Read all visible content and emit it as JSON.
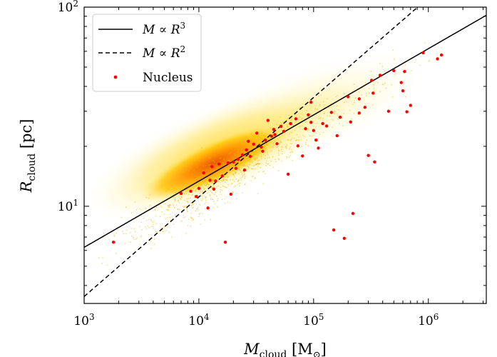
{
  "chart_data": {
    "type": "scatter",
    "title": "",
    "xlabel": {
      "main": "M",
      "sub": "cloud",
      "unit_open": " [M",
      "unit_sub": "⊙",
      "unit_close": "]"
    },
    "ylabel": {
      "main": "R",
      "sub": "cloud",
      "unit": " [pc]"
    },
    "xscale": "log",
    "yscale": "log",
    "xlim": [
      1000,
      3200000
    ],
    "ylim": [
      3.25,
      100
    ],
    "xticks": [
      {
        "value": 1000,
        "base": "10",
        "exp": "3"
      },
      {
        "value": 10000,
        "base": "10",
        "exp": "4"
      },
      {
        "value": 100000,
        "base": "10",
        "exp": "5"
      },
      {
        "value": 1000000,
        "base": "10",
        "exp": "6"
      }
    ],
    "yticks": [
      {
        "value": 10,
        "base": "10",
        "exp": "1"
      },
      {
        "value": 100,
        "base": "10",
        "exp": "2"
      }
    ],
    "legend": {
      "position": "top-left",
      "entries": [
        {
          "label_main": "M ∝ R",
          "label_exp": "3",
          "style": "solid",
          "color": "#000000"
        },
        {
          "label_main": "M ∝ R",
          "label_exp": "2",
          "style": "dashed",
          "color": "#000000"
        },
        {
          "label_main": "Nucleus",
          "style": "marker",
          "color": "#ff0000"
        }
      ]
    },
    "series": [
      {
        "name": "M ∝ R^3",
        "type": "line",
        "style": "solid",
        "color": "#000000",
        "x": [
          1000,
          3200000
        ],
        "y": [
          6.22,
          91.0
        ]
      },
      {
        "name": "M ∝ R^2",
        "type": "line",
        "style": "dashed",
        "color": "#000000",
        "x": [
          1000,
          900000
        ],
        "y": [
          3.52,
          105.6
        ]
      },
      {
        "name": "Nucleus",
        "type": "scatter",
        "color": "#ff0000",
        "points": [
          [
            1800,
            6.6
          ],
          [
            7000,
            11.6
          ],
          [
            8500,
            11.9
          ],
          [
            10000,
            12.3
          ],
          [
            11000,
            14.7
          ],
          [
            12000,
            9.8
          ],
          [
            12500,
            13.5
          ],
          [
            13000,
            15.8
          ],
          [
            14000,
            13.4
          ],
          [
            15000,
            16.3
          ],
          [
            17000,
            6.6
          ],
          [
            18000,
            16.5
          ],
          [
            19000,
            11.5
          ],
          [
            20000,
            16.7
          ],
          [
            22000,
            17.2
          ],
          [
            24000,
            18.1
          ],
          [
            26000,
            19.2
          ],
          [
            28000,
            17.8
          ],
          [
            30000,
            20.5
          ],
          [
            32000,
            23.3
          ],
          [
            35000,
            19.8
          ],
          [
            38000,
            21.5
          ],
          [
            40000,
            27.0
          ],
          [
            43000,
            22.5
          ],
          [
            45000,
            24.3
          ],
          [
            48000,
            20.6
          ],
          [
            52000,
            25.2
          ],
          [
            55000,
            23.8
          ],
          [
            60000,
            14.5
          ],
          [
            63000,
            26.0
          ],
          [
            70000,
            27.5
          ],
          [
            80000,
            17.9
          ],
          [
            85000,
            24.5
          ],
          [
            90000,
            28.8
          ],
          [
            95000,
            33.3
          ],
          [
            100000,
            24.0
          ],
          [
            105000,
            21.5
          ],
          [
            110000,
            19.6
          ],
          [
            120000,
            26.0
          ],
          [
            130000,
            25.3
          ],
          [
            150000,
            7.6
          ],
          [
            160000,
            22.6
          ],
          [
            170000,
            28.0
          ],
          [
            185000,
            6.9
          ],
          [
            200000,
            35.5
          ],
          [
            210000,
            26.5
          ],
          [
            220000,
            9.2
          ],
          [
            250000,
            34.6
          ],
          [
            280000,
            31.4
          ],
          [
            300000,
            18.0
          ],
          [
            320000,
            42.9
          ],
          [
            340000,
            16.7
          ],
          [
            380000,
            45.5
          ],
          [
            450000,
            30.0
          ],
          [
            500000,
            48.0
          ],
          [
            580000,
            41.8
          ],
          [
            620000,
            47.5
          ],
          [
            650000,
            29.8
          ],
          [
            700000,
            32.1
          ],
          [
            900000,
            59.0
          ],
          [
            1200000,
            55.0
          ],
          [
            1300000,
            57.5
          ],
          [
            36000,
            18.9
          ],
          [
            27000,
            21.2
          ],
          [
            16000,
            14.2
          ],
          [
            21000,
            15.5
          ],
          [
            46000,
            22.9
          ],
          [
            73000,
            20.1
          ],
          [
            95000,
            26.4
          ],
          [
            143000,
            29.6
          ],
          [
            250000,
            29.4
          ],
          [
            600000,
            38.0
          ],
          [
            330000,
            37.0
          ],
          [
            9500,
            11.2
          ],
          [
            13500,
            12.2
          ],
          [
            25000,
            15.2
          ]
        ]
      }
    ],
    "density_cloud": {
      "color_low": "#fff7b8",
      "color_mid": "#ffc400",
      "color_high": "#ff7a00",
      "peak": [
        14000,
        13.5
      ]
    }
  }
}
